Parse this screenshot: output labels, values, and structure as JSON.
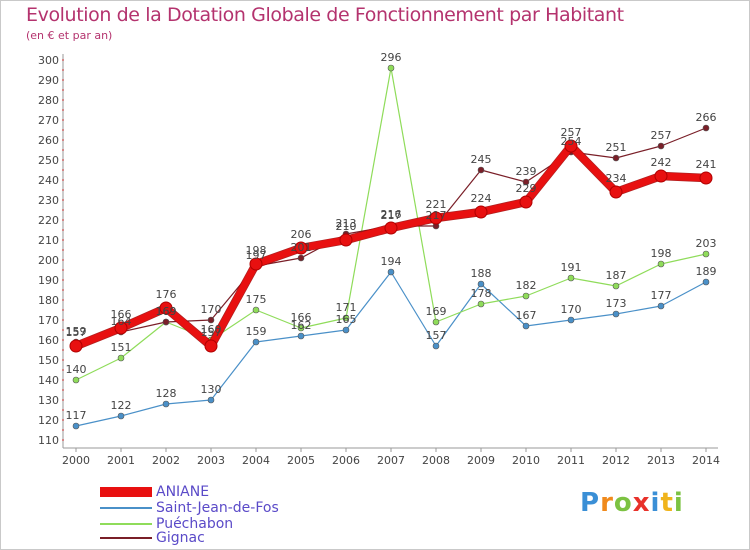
{
  "title": "Evolution de la Dotation Globale de Fonctionnement par Habitant",
  "subtitle": "(en € et par an)",
  "logo": {
    "letters": [
      {
        "ch": "P",
        "color": "#3a8fd6"
      },
      {
        "ch": "r",
        "color": "#f08a1c"
      },
      {
        "ch": "o",
        "color": "#7cc242"
      },
      {
        "ch": "x",
        "color": "#e8312a"
      },
      {
        "ch": "i",
        "color": "#3a8fd6"
      },
      {
        "ch": "t",
        "color": "#f0b41c"
      },
      {
        "ch": "i",
        "color": "#7cc242"
      }
    ]
  },
  "chart_data": {
    "type": "line",
    "title": "Evolution de la Dotation Globale de Fonctionnement par Habitant",
    "subtitle": "(en € et par an)",
    "x": [
      2000,
      2001,
      2002,
      2003,
      2004,
      2005,
      2006,
      2007,
      2008,
      2009,
      2010,
      2011,
      2012,
      2013,
      2014
    ],
    "ylim": [
      110,
      300
    ],
    "yticks": [
      110,
      120,
      130,
      140,
      150,
      160,
      170,
      180,
      190,
      200,
      210,
      220,
      230,
      240,
      250,
      260,
      270,
      280,
      290,
      300
    ],
    "grid": false,
    "legend_position": "bottom-left",
    "series": [
      {
        "name": "Saint-Jean-de-Fos",
        "color": "#4a90c8",
        "width": 1.2,
        "values": [
          117,
          122,
          128,
          130,
          159,
          162,
          165,
          194,
          157,
          188,
          167,
          170,
          173,
          177,
          189
        ]
      },
      {
        "name": "Puéchabon",
        "color": "#8fdc5a",
        "width": 1.2,
        "values": [
          140,
          151,
          169,
          160,
          175,
          166,
          171,
          296,
          169,
          178,
          182,
          191,
          187,
          198,
          203
        ]
      },
      {
        "name": "Gignac",
        "color": "#7a1f28",
        "width": 1.2,
        "values": [
          159,
          164,
          169,
          170,
          197,
          201,
          213,
          217,
          217,
          245,
          239,
          254,
          251,
          257,
          266
        ]
      },
      {
        "name": "ANIANE",
        "color": "#e81010",
        "width": 7,
        "values": [
          157,
          166,
          176,
          157,
          198,
          206,
          210,
          216,
          221,
          224,
          229,
          257,
          234,
          242,
          241
        ]
      }
    ],
    "value_labels": [
      {
        "series": "Saint-Jean-de-Fos",
        "labels": [
          "117",
          "122",
          "128",
          "130",
          "159",
          "162",
          "165",
          "194",
          "157",
          "188",
          "167",
          "170",
          "173",
          "177",
          "189"
        ]
      },
      {
        "series": "Puéchabon",
        "labels": [
          "140",
          "151",
          "169",
          "160",
          "175",
          "166",
          "171",
          "296",
          "169",
          "178",
          "182",
          "191",
          "187",
          "198",
          "203"
        ]
      },
      {
        "series": "Gignac",
        "labels": [
          "159",
          "164",
          "169",
          "170",
          "197",
          "201",
          "213",
          "217",
          "217",
          "245",
          "239",
          "254",
          "251",
          "257",
          "266"
        ]
      },
      {
        "series": "ANIANE",
        "labels": [
          "157",
          "166",
          "176",
          "157",
          "198",
          "206",
          "210",
          "216",
          "221",
          "224",
          "229",
          "257",
          "234",
          "242",
          "241"
        ]
      }
    ],
    "legend": [
      "ANIANE",
      "Saint-Jean-de-Fos",
      "Puéchabon",
      "Gignac"
    ]
  }
}
